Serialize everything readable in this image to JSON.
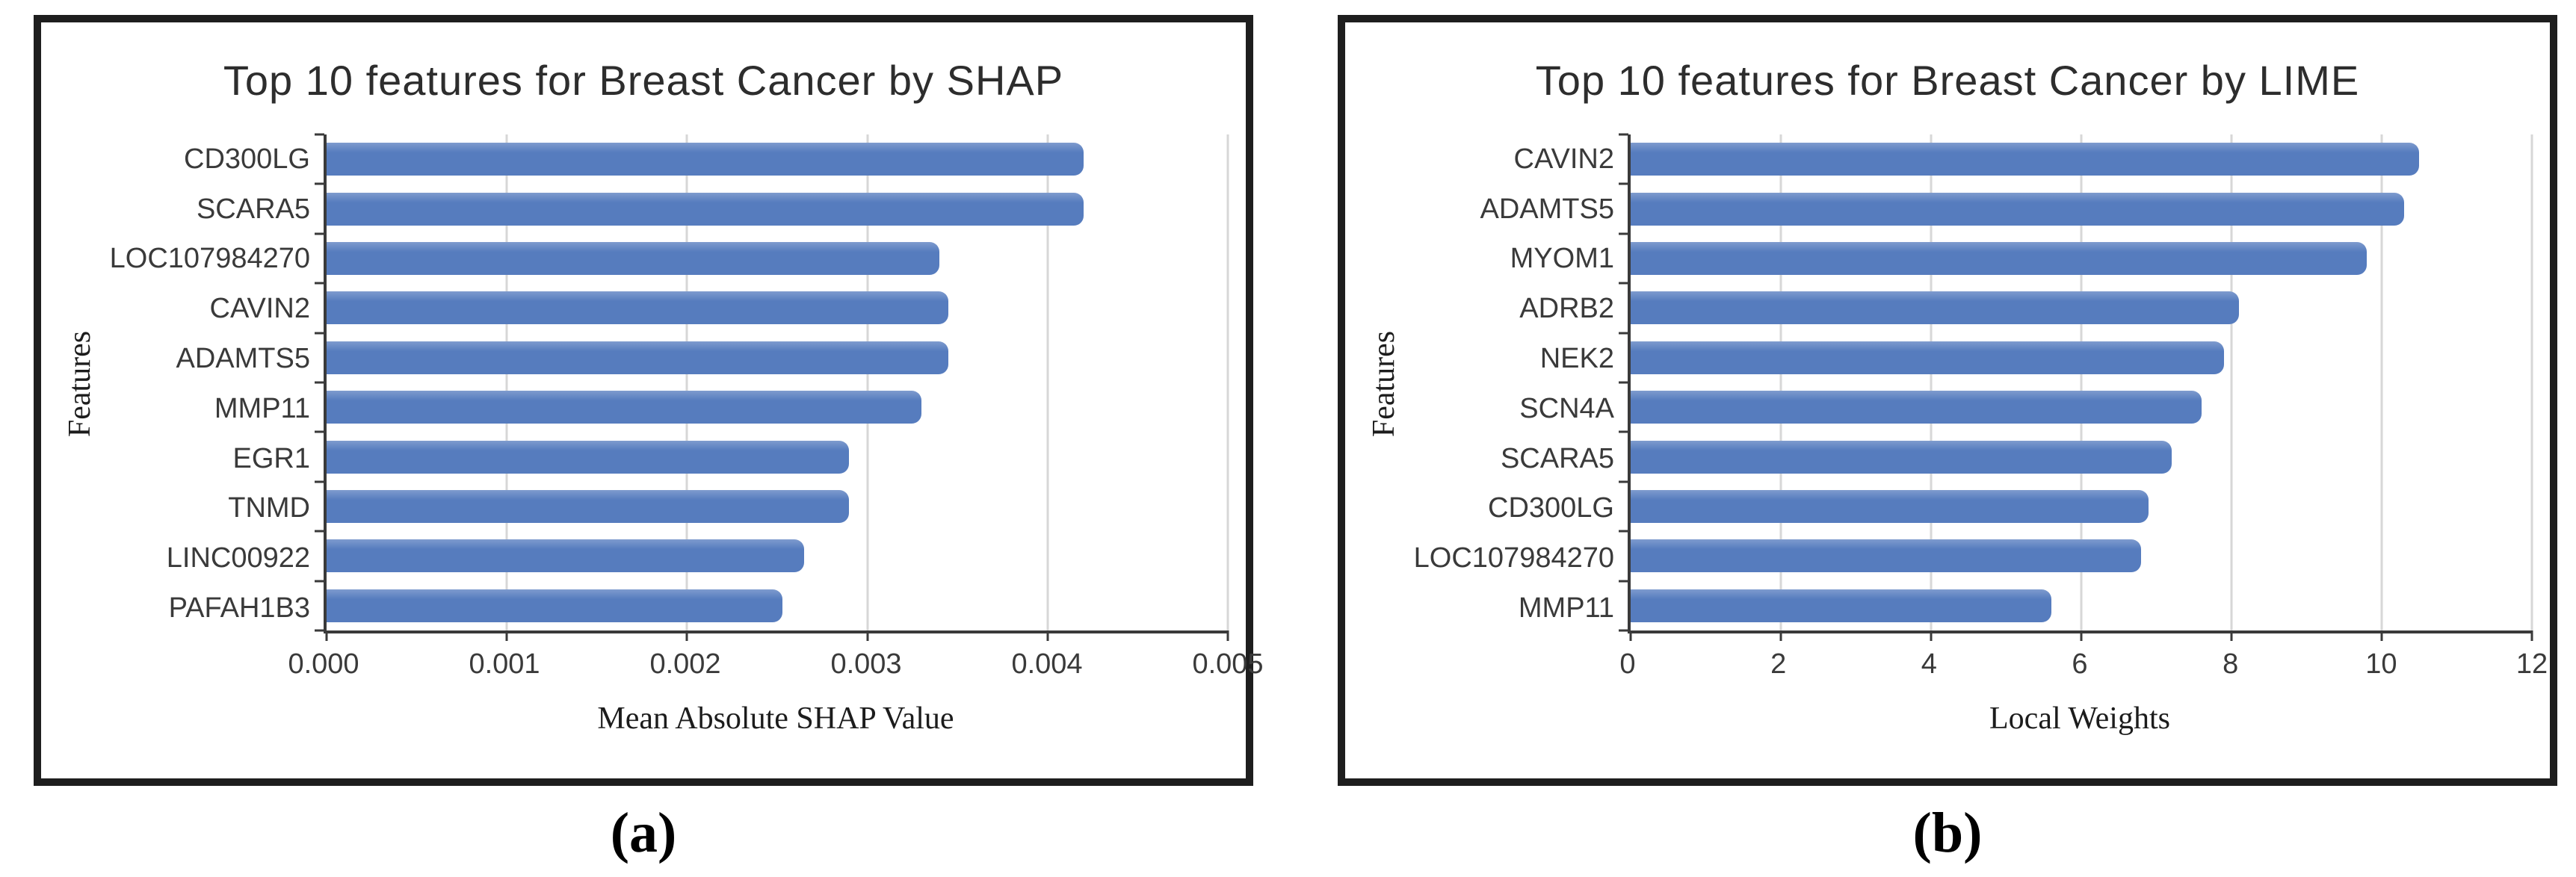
{
  "figure": {
    "background": "#ffffff",
    "panel_border_color": "#1e1e1e",
    "bar_color": "#567cbe",
    "bar_color_light": "#7e9bce",
    "gridline_color": "#d7d7d7",
    "axis_color": "#3a3a3a",
    "label_color": "#3a3a3a",
    "captions": {
      "a": "(a)",
      "b": "(b)"
    }
  },
  "chart_data": [
    {
      "type": "bar",
      "orientation": "horizontal",
      "title": "Top 10 features for Breast Cancer by SHAP",
      "xlabel": "Mean Absolute SHAP Value",
      "ylabel": "Features",
      "categories": [
        "CD300LG",
        "SCARA5",
        "LOC107984270",
        "CAVIN2",
        "ADAMTS5",
        "MMP11",
        "EGR1",
        "TNMD",
        "LINC00922",
        "PAFAH1B3"
      ],
      "values": [
        0.0042,
        0.0042,
        0.0034,
        0.00345,
        0.00345,
        0.0033,
        0.0029,
        0.0029,
        0.00265,
        0.00253
      ],
      "xlim": [
        0,
        0.005
      ],
      "xticks": [
        0,
        0.001,
        0.002,
        0.003,
        0.004,
        0.005
      ],
      "xtick_labels": [
        "0.000",
        "0.001",
        "0.002",
        "0.003",
        "0.004",
        "0.005"
      ],
      "grid": true,
      "legend_position": "none",
      "caption": "(a)"
    },
    {
      "type": "bar",
      "orientation": "horizontal",
      "title": "Top 10 features for Breast Cancer by LIME",
      "xlabel": "Local Weights",
      "ylabel": "Features",
      "categories": [
        "CAVIN2",
        "ADAMTS5",
        "MYOM1",
        "ADRB2",
        "NEK2",
        "SCN4A",
        "SCARA5",
        "CD300LG",
        "LOC107984270",
        "MMP11"
      ],
      "values": [
        10.5,
        10.3,
        9.8,
        8.1,
        7.9,
        7.6,
        7.2,
        6.9,
        6.8,
        5.6
      ],
      "xlim": [
        0,
        12
      ],
      "xticks": [
        0,
        2,
        4,
        6,
        8,
        10,
        12
      ],
      "xtick_labels": [
        "0",
        "2",
        "4",
        "6",
        "8",
        "10",
        "12"
      ],
      "grid": true,
      "legend_position": "none",
      "caption": "(b)"
    }
  ]
}
